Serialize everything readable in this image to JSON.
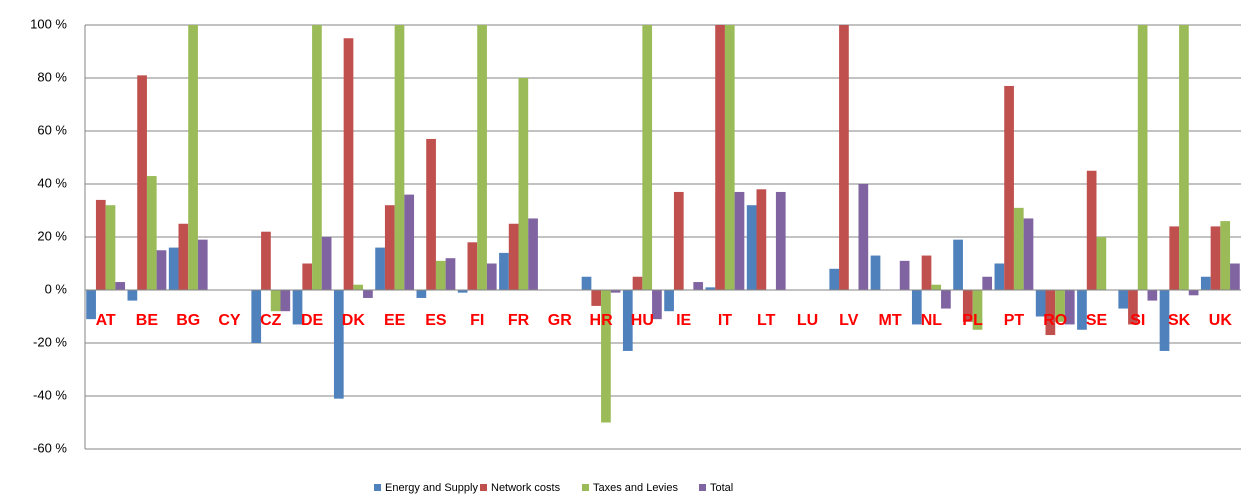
{
  "chart_data": {
    "type": "bar",
    "categories": [
      "AT",
      "BE",
      "BG",
      "CY",
      "CZ",
      "DE",
      "DK",
      "EE",
      "ES",
      "FI",
      "FR",
      "GR",
      "HR",
      "HU",
      "IE",
      "IT",
      "LT",
      "LU",
      "LV",
      "MT",
      "NL",
      "PL",
      "PT",
      "RO",
      "SE",
      "SI",
      "SK",
      "UK"
    ],
    "series": [
      {
        "name": "Energy and Supply",
        "color": "#4f81bd",
        "values": [
          -11,
          -4,
          16,
          null,
          -20,
          -13,
          -41,
          16,
          -3,
          -1,
          14,
          null,
          5,
          -23,
          -8,
          1,
          32,
          null,
          8,
          13,
          -13,
          19,
          10,
          -10,
          -15,
          -7,
          -23,
          5
        ]
      },
      {
        "name": "Network costs",
        "color": "#c0504d",
        "values": [
          34,
          81,
          25,
          null,
          22,
          10,
          95,
          32,
          57,
          18,
          25,
          null,
          -6,
          5,
          37,
          100,
          38,
          null,
          100,
          null,
          13,
          -12,
          77,
          -17,
          45,
          -13,
          24,
          24
        ]
      },
      {
        "name": "Taxes and Levies",
        "color": "#9bbb59",
        "values": [
          32,
          43,
          100,
          null,
          -8,
          100,
          2,
          100,
          11,
          100,
          80,
          null,
          -50,
          100,
          null,
          100,
          null,
          null,
          null,
          null,
          2,
          -15,
          31,
          -12,
          20,
          100,
          100,
          26
        ]
      },
      {
        "name": "Total",
        "color": "#8064a2",
        "values": [
          3,
          15,
          19,
          null,
          -8,
          20,
          -3,
          36,
          12,
          10,
          27,
          null,
          -1,
          -11,
          3,
          37,
          37,
          null,
          40,
          11,
          -7,
          5,
          27,
          -13,
          null,
          -4,
          -2,
          10
        ]
      }
    ],
    "ylim": [
      -60,
      100
    ],
    "yticks": [
      {
        "value": -60,
        "label": "-60 %"
      },
      {
        "value": -40,
        "label": "-40 %"
      },
      {
        "value": -20,
        "label": "-20 %"
      },
      {
        "value": 0,
        "label": "0 %"
      },
      {
        "value": 20,
        "label": "20 %"
      },
      {
        "value": 40,
        "label": "40 %"
      },
      {
        "value": 60,
        "label": "60 %"
      },
      {
        "value": 80,
        "label": "80 %"
      },
      {
        "value": 100,
        "label": "100 %"
      }
    ],
    "grid": true,
    "legend": "bottom"
  }
}
